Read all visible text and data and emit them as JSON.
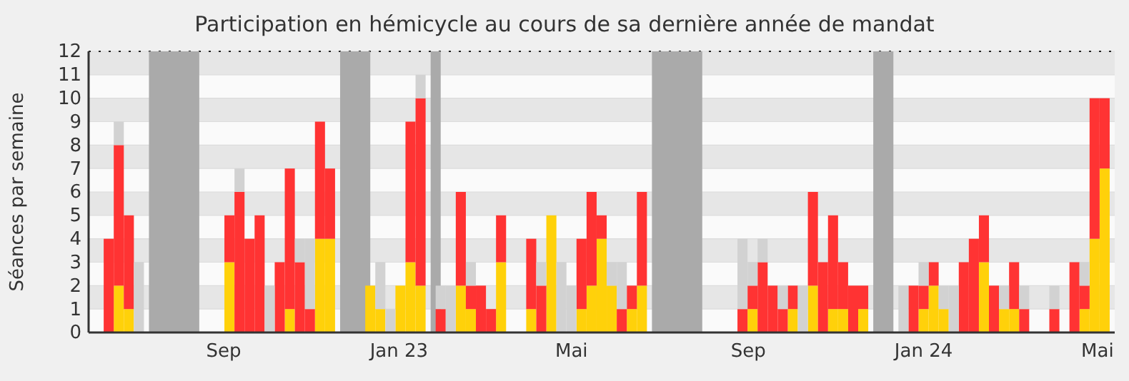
{
  "chart_data": {
    "type": "bar",
    "title": "Participation en hémicycle au cours de sa dernière année de mandat",
    "ylabel": "Séances par semaine",
    "stacked": true,
    "grid": true,
    "x": [
      "2022-06-13",
      "2022-06-20",
      "2022-06-27",
      "2022-07-04",
      "2022-07-11",
      "2022-07-18",
      "2022-07-25",
      "2022-08-01",
      "2022-08-08",
      "2022-08-15",
      "2022-08-22",
      "2022-08-29",
      "2022-09-05",
      "2022-09-12",
      "2022-09-19",
      "2022-09-26",
      "2022-10-03",
      "2022-10-10",
      "2022-10-17",
      "2022-10-24",
      "2022-10-31",
      "2022-11-07",
      "2022-11-14",
      "2022-11-21",
      "2022-11-28",
      "2022-12-05",
      "2022-12-12",
      "2022-12-19",
      "2022-12-26",
      "2023-01-02",
      "2023-01-09",
      "2023-01-16",
      "2023-01-23",
      "2023-01-30",
      "2023-02-06",
      "2023-02-13",
      "2023-02-20",
      "2023-02-27",
      "2023-03-06",
      "2023-03-13",
      "2023-03-20",
      "2023-03-27",
      "2023-04-03",
      "2023-04-10",
      "2023-04-17",
      "2023-04-24",
      "2023-05-01",
      "2023-05-08",
      "2023-05-15",
      "2023-05-22",
      "2023-05-29",
      "2023-06-05",
      "2023-06-12",
      "2023-06-19",
      "2023-06-26",
      "2023-07-03",
      "2023-07-10",
      "2023-07-17",
      "2023-07-24",
      "2023-07-31",
      "2023-08-07",
      "2023-08-14",
      "2023-08-21",
      "2023-08-28",
      "2023-09-04",
      "2023-09-11",
      "2023-09-18",
      "2023-09-25",
      "2023-10-02",
      "2023-10-09",
      "2023-10-16",
      "2023-10-23",
      "2023-10-30",
      "2023-11-06",
      "2023-11-13",
      "2023-11-20",
      "2023-11-27",
      "2023-12-04",
      "2023-12-11",
      "2023-12-18",
      "2023-12-25",
      "2024-01-01",
      "2024-01-08",
      "2024-01-15",
      "2024-01-22",
      "2024-01-29",
      "2024-02-05",
      "2024-02-12",
      "2024-02-19",
      "2024-02-26",
      "2024-03-04",
      "2024-03-11",
      "2024-03-18",
      "2024-03-25",
      "2024-04-01",
      "2024-04-08",
      "2024-04-15",
      "2024-04-22",
      "2024-04-29",
      "2024-05-06"
    ],
    "series": [
      {
        "color": "#ffd10a",
        "values": [
          0,
          2,
          1,
          0,
          null,
          null,
          null,
          null,
          null,
          0,
          0,
          0,
          3,
          0,
          0,
          0,
          0,
          0,
          1,
          0,
          0,
          4,
          4,
          null,
          null,
          null,
          2,
          1,
          0,
          2,
          3,
          2,
          null,
          0,
          0,
          2,
          1,
          0,
          0,
          3,
          0,
          0,
          1,
          0,
          5,
          0,
          0,
          1,
          2,
          4,
          2,
          0,
          1,
          2,
          null,
          null,
          null,
          null,
          null,
          0,
          0,
          0,
          0,
          0,
          1,
          0,
          0,
          0,
          1,
          0,
          2,
          0,
          1,
          1,
          0,
          1,
          null,
          null,
          0,
          0,
          0,
          1,
          2,
          1,
          0,
          0,
          0,
          3,
          0,
          1,
          1,
          0,
          0,
          0,
          0,
          0,
          0,
          1,
          4,
          7
        ]
      },
      {
        "color": "#ff3333",
        "values": [
          4,
          6,
          4,
          0,
          null,
          null,
          null,
          null,
          null,
          0,
          0,
          0,
          2,
          6,
          4,
          5,
          0,
          3,
          6,
          3,
          1,
          5,
          3,
          null,
          null,
          null,
          0,
          0,
          0,
          0,
          6,
          8,
          null,
          1,
          0,
          4,
          1,
          2,
          1,
          2,
          0,
          0,
          3,
          2,
          0,
          0,
          0,
          3,
          4,
          1,
          0,
          1,
          1,
          4,
          null,
          null,
          null,
          null,
          null,
          0,
          0,
          0,
          0,
          1,
          1,
          3,
          2,
          1,
          1,
          0,
          4,
          3,
          4,
          2,
          2,
          1,
          null,
          null,
          0,
          0,
          2,
          1,
          1,
          0,
          0,
          3,
          4,
          2,
          2,
          0,
          2,
          1,
          0,
          0,
          1,
          0,
          3,
          1,
          6,
          3
        ]
      },
      {
        "color": "#d2d2d2",
        "values": [
          null,
          1,
          null,
          3,
          null,
          null,
          null,
          null,
          null,
          null,
          null,
          null,
          null,
          1,
          null,
          null,
          2,
          null,
          null,
          1,
          3,
          null,
          null,
          null,
          null,
          null,
          null,
          2,
          1,
          null,
          null,
          1,
          null,
          1,
          2,
          null,
          1,
          null,
          null,
          null,
          null,
          null,
          null,
          1,
          null,
          3,
          2,
          null,
          null,
          null,
          1,
          2,
          null,
          null,
          null,
          null,
          null,
          null,
          null,
          null,
          null,
          null,
          null,
          3,
          1,
          1,
          null,
          1,
          null,
          2,
          null,
          null,
          null,
          null,
          null,
          null,
          null,
          null,
          null,
          2,
          null,
          1,
          null,
          1,
          2,
          null,
          null,
          null,
          null,
          1,
          null,
          1,
          null,
          null,
          1,
          null,
          null,
          1,
          null,
          null
        ]
      }
    ],
    "xlim": [
      "2022-05-30",
      "2024-05-13"
    ],
    "xticks": [
      {
        "value": "2022-09-01",
        "label": "Sep"
      },
      {
        "value": "2023-01-01",
        "label": "Jan 23"
      },
      {
        "value": "2023-05-01",
        "label": "Mai"
      },
      {
        "value": "2023-09-01",
        "label": "Sep"
      },
      {
        "value": "2024-01-01",
        "label": "Jan 24"
      },
      {
        "value": "2024-05-01",
        "label": "Mai"
      }
    ],
    "ylim": [
      0,
      12
    ],
    "yticks": [
      0,
      1,
      2,
      3,
      4,
      5,
      6,
      7,
      8,
      9,
      10,
      11,
      12
    ],
    "bands": [
      {
        "axis": "x",
        "from": "2022-07-11",
        "to": "2022-08-15",
        "color": "#aaaaaa"
      },
      {
        "axis": "x",
        "from": "2022-11-21",
        "to": "2022-12-12",
        "color": "#aaaaaa"
      },
      {
        "axis": "x",
        "from": "2023-01-23",
        "to": "2023-01-30",
        "color": "#aaaaaa"
      },
      {
        "axis": "x",
        "from": "2023-06-26",
        "to": "2023-07-31",
        "color": "#aaaaaa"
      },
      {
        "axis": "x",
        "from": "2023-11-27",
        "to": "2023-12-11",
        "color": "#aaaaaa"
      }
    ]
  }
}
